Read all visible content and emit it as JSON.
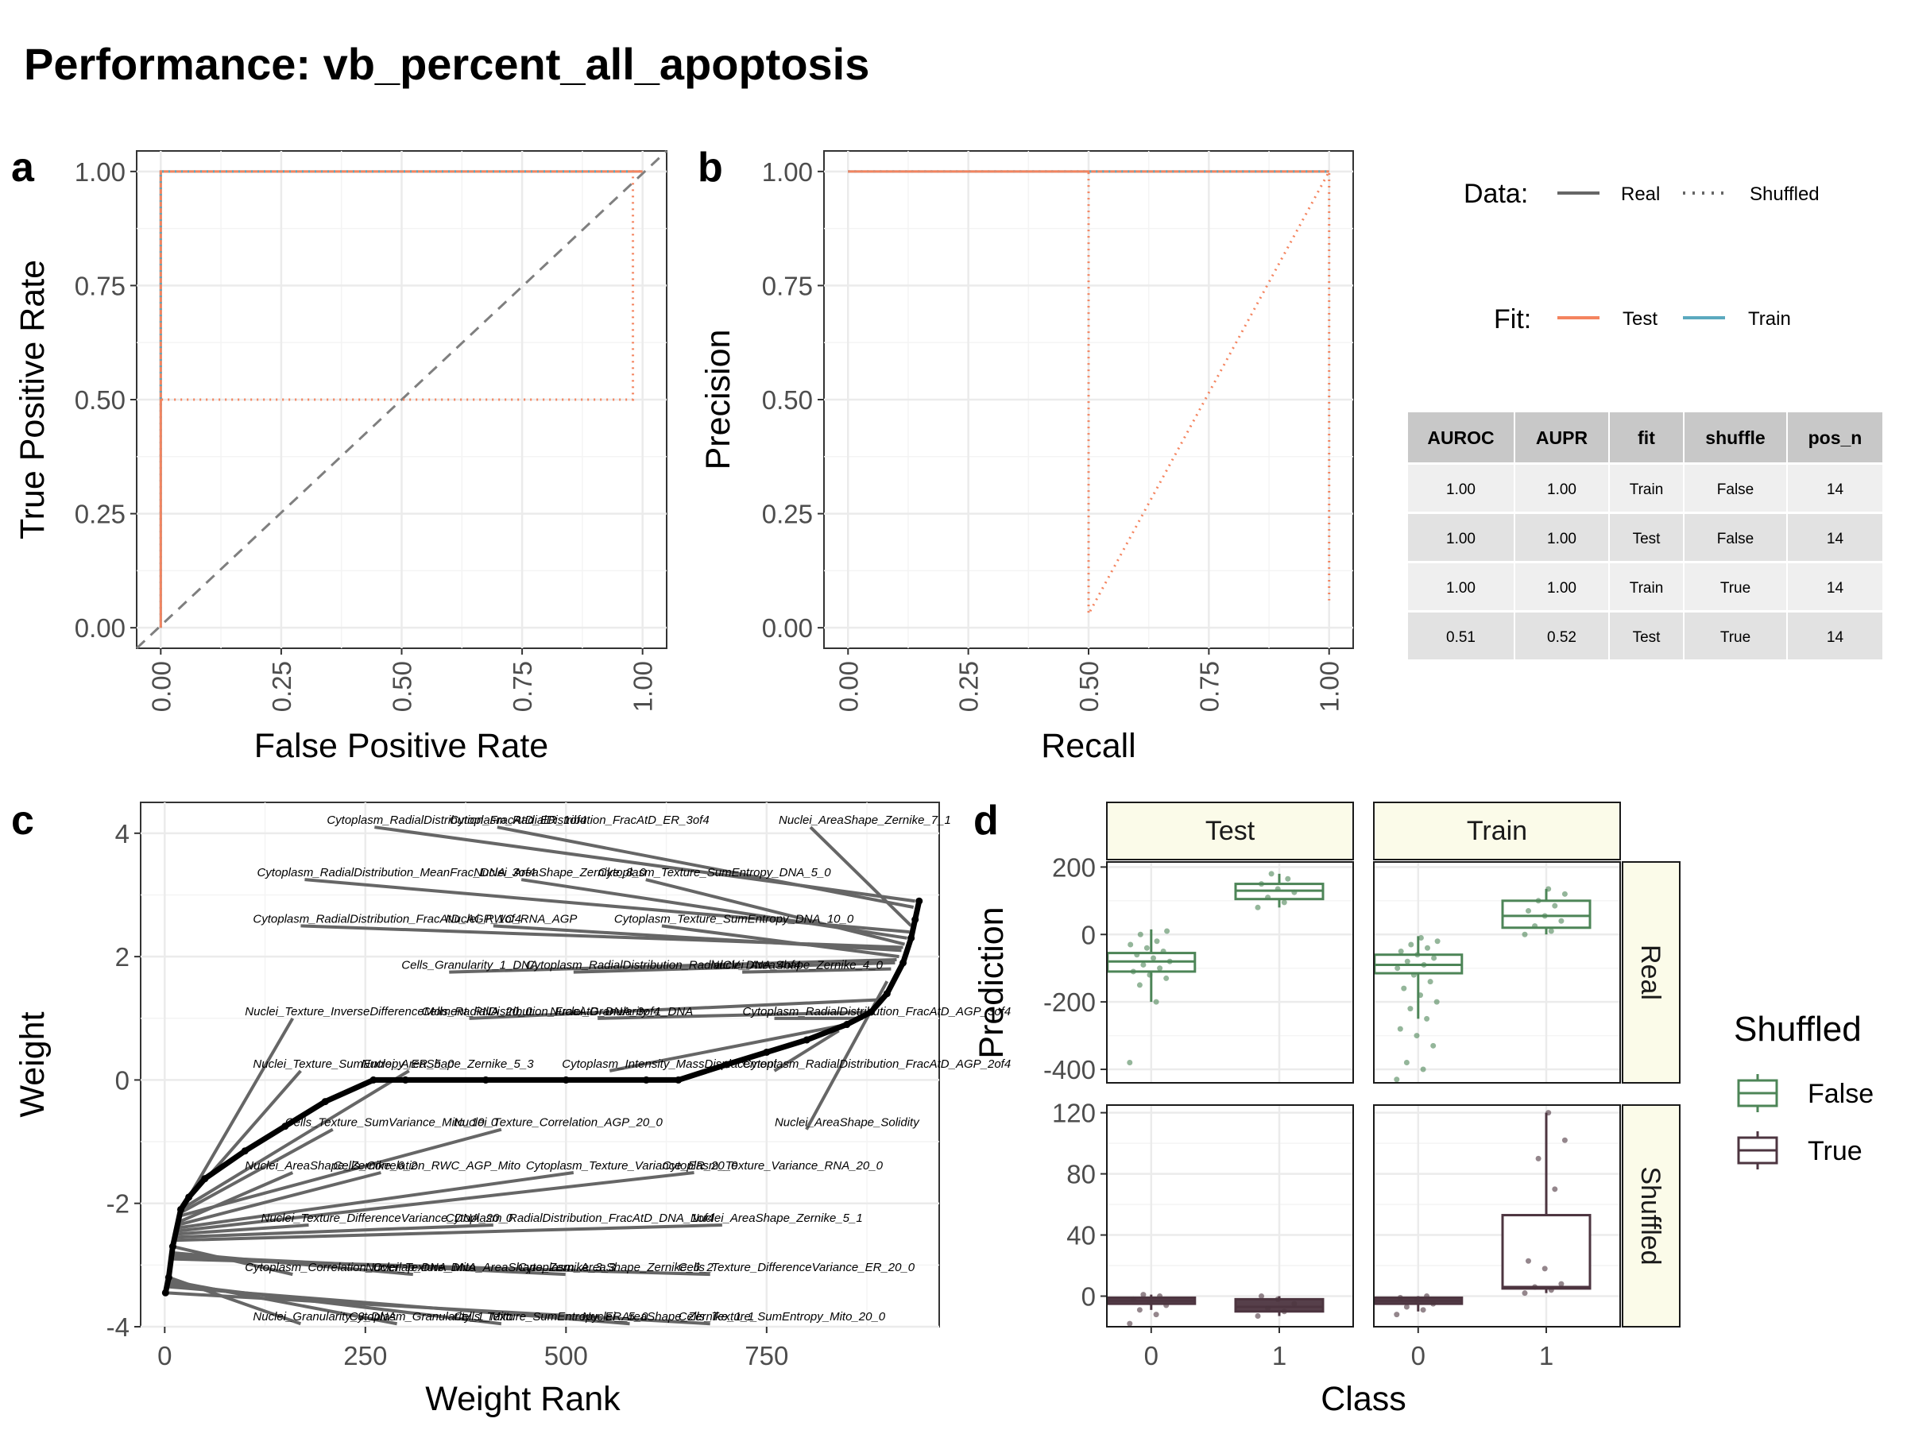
{
  "title": "Performance: vb_percent_all_apoptosis",
  "panels": {
    "a": "a",
    "b": "b",
    "c": "c",
    "d": "d"
  },
  "colors": {
    "test": "#f4845f",
    "train": "#5ba9bf",
    "false_box": "#4d8557",
    "true_box": "#4d3540",
    "diag": "#7f7f7f"
  },
  "legend": {
    "data_title": "Data:",
    "real": "Real",
    "shuffled": "Shuffled",
    "fit_title": "Fit:",
    "test": "Test",
    "train": "Train"
  },
  "metrics_table": {
    "columns": [
      "AUROC",
      "AUPR",
      "fit",
      "shuffle",
      "pos_n"
    ],
    "rows": [
      [
        "1.00",
        "1.00",
        "Train",
        "False",
        "14"
      ],
      [
        "1.00",
        "1.00",
        "Test",
        "False",
        "14"
      ],
      [
        "1.00",
        "1.00",
        "Train",
        "True",
        "14"
      ],
      [
        "0.51",
        "0.52",
        "Test",
        "True",
        "14"
      ]
    ]
  },
  "chart_data": [
    {
      "panel": "a",
      "type": "line",
      "xlabel": "False Positive Rate",
      "ylabel": "True Positive Rate",
      "xlim": [
        -0.05,
        1.05
      ],
      "ylim": [
        -0.045,
        1.045
      ],
      "xticks": [
        "0.00",
        "0.25",
        "0.50",
        "0.75",
        "1.00"
      ],
      "yticks": [
        "0.00",
        "0.25",
        "0.50",
        "0.75",
        "1.00"
      ],
      "reference_line": "diagonal",
      "series": [
        {
          "fit": "train",
          "data": "real",
          "x": [
            0,
            0,
            1
          ],
          "y": [
            0,
            1,
            1
          ]
        },
        {
          "fit": "test",
          "data": "real",
          "x": [
            0,
            0,
            1
          ],
          "y": [
            0,
            1,
            1
          ]
        },
        {
          "fit": "train",
          "data": "shuffled",
          "x": [
            0,
            0,
            1
          ],
          "y": [
            0,
            1,
            1
          ]
        },
        {
          "fit": "test",
          "data": "shuffled",
          "x": [
            0,
            0,
            0.98,
            0.98,
            1
          ],
          "y": [
            0,
            0.5,
            0.5,
            1,
            1
          ]
        }
      ]
    },
    {
      "panel": "b",
      "type": "line",
      "xlabel": "Recall",
      "ylabel": "Precision",
      "xlim": [
        -0.05,
        1.05
      ],
      "ylim": [
        -0.045,
        1.045
      ],
      "xticks": [
        "0.00",
        "0.25",
        "0.50",
        "0.75",
        "1.00"
      ],
      "yticks": [
        "0.00",
        "0.25",
        "0.50",
        "0.75",
        "1.00"
      ],
      "series": [
        {
          "fit": "train",
          "data": "real",
          "x": [
            0,
            1
          ],
          "y": [
            1,
            1
          ]
        },
        {
          "fit": "test",
          "data": "real",
          "x": [
            0,
            1
          ],
          "y": [
            1,
            1
          ]
        },
        {
          "fit": "train",
          "data": "shuffled",
          "x": [
            0,
            1
          ],
          "y": [
            1,
            1
          ]
        },
        {
          "fit": "test",
          "data": "shuffled",
          "x": [
            0,
            0.5,
            0.5,
            1,
            1
          ],
          "y": [
            1,
            1,
            0.03,
            1,
            0.06
          ]
        }
      ]
    },
    {
      "panel": "c",
      "type": "scatter",
      "xlabel": "Weight Rank",
      "ylabel": "Weight",
      "xlim": [
        -30,
        965
      ],
      "ylim": [
        -4,
        4.5
      ],
      "xticks": [
        0,
        250,
        500,
        750
      ],
      "yticks": [
        4,
        2,
        0,
        -2,
        -4
      ],
      "yticklabels": [
        "4",
        "2",
        "0",
        "-2",
        "-4"
      ],
      "curve": {
        "rank": [
          1,
          5,
          10,
          20,
          30,
          50,
          100,
          150,
          200,
          260,
          300,
          400,
          500,
          600,
          640,
          700,
          750,
          800,
          850,
          880,
          900,
          920,
          930,
          935,
          940
        ],
        "weight": [
          -3.45,
          -3.2,
          -2.7,
          -2.1,
          -1.9,
          -1.6,
          -1.15,
          -0.75,
          -0.35,
          0,
          0,
          0,
          0,
          0,
          0,
          0.25,
          0.45,
          0.65,
          0.9,
          1.1,
          1.4,
          1.9,
          2.3,
          2.6,
          2.9
        ]
      },
      "labels": [
        {
          "text": "Cytoplasm_RadialDistribution_FracAtD_ER_1of4",
          "rank": 935,
          "weight": 2.9,
          "tx": 202,
          "ty": 4.15
        },
        {
          "text": "Cytoplasm_RadialDistribution_FracAtD_ER_3of4",
          "rank": 933,
          "weight": 2.8,
          "tx": 355,
          "ty": 4.15
        },
        {
          "text": "Nuclei_AreaShape_Zernike_7_1",
          "rank": 930,
          "weight": 2.5,
          "tx": 765,
          "ty": 4.15
        },
        {
          "text": "Cytoplasm_RadialDistribution_MeanFrac_DNA_3of4",
          "rank": 928,
          "weight": 2.4,
          "tx": 115,
          "ty": 3.3
        },
        {
          "text": "Nuclei_AreaShape_Zernike_8_0",
          "rank": 925,
          "weight": 2.3,
          "tx": 385,
          "ty": 3.3
        },
        {
          "text": "Cytoplasm_Texture_SumEntropy_DNA_5_0",
          "rank": 922,
          "weight": 2.2,
          "tx": 540,
          "ty": 3.3
        },
        {
          "text": "Cytoplasm_RadialDistribution_FracAtD_AGP_1of4",
          "rank": 920,
          "weight": 2.15,
          "tx": 110,
          "ty": 2.55
        },
        {
          "text": "Nuclei_RWC_RNA_AGP",
          "rank": 918,
          "weight": 2.1,
          "tx": 350,
          "ty": 2.55
        },
        {
          "text": "Cytoplasm_Texture_SumEntropy_DNA_10_0",
          "rank": 915,
          "weight": 2.0,
          "tx": 560,
          "ty": 2.55
        },
        {
          "text": "Cells_Granularity_1_DNA",
          "rank": 912,
          "weight": 1.95,
          "tx": 295,
          "ty": 1.8
        },
        {
          "text": "Cytoplasm_RadialDistribution_RadialCV_DNA_4of4",
          "rank": 910,
          "weight": 1.9,
          "tx": 450,
          "ty": 1.8
        },
        {
          "text": "Nuclei_AreaShape_Zernike_4_0",
          "rank": 905,
          "weight": 1.8,
          "tx": 680,
          "ty": 1.8
        },
        {
          "text": "Nuclei_Texture_InverseDifferenceMoment_RNA_20_0",
          "rank": 30,
          "weight": -1.9,
          "tx": 100,
          "ty": 1.05
        },
        {
          "text": "Cells_RadialDistribution_FracAtD_DNA_3of4",
          "rank": 890,
          "weight": 1.3,
          "tx": 320,
          "ty": 1.05
        },
        {
          "text": "Nuclei_Granularity_1_DNA",
          "rank": 880,
          "weight": 1.1,
          "tx": 480,
          "ty": 1.05
        },
        {
          "text": "Cytoplasm_RadialDistribution_FracAtD_AGP_3of4",
          "rank": 870,
          "weight": 1.0,
          "tx": 720,
          "ty": 1.05
        },
        {
          "text": "Nuclei_Texture_SumEntropy_ER_5_0",
          "rank": 25,
          "weight": -2.0,
          "tx": 110,
          "ty": 0.2
        },
        {
          "text": "Nuclei_AreaShape_Zernike_5_3",
          "rank": 20,
          "weight": -2.1,
          "tx": 245,
          "ty": 0.2
        },
        {
          "text": "Cytoplasm_Intensity_MassDisplacement",
          "rank": 850,
          "weight": 0.9,
          "tx": 495,
          "ty": 0.2
        },
        {
          "text": "Cytoplasm_RadialDistribution_FracAtD_AGP_2of4",
          "rank": 840,
          "weight": 0.8,
          "tx": 720,
          "ty": 0.2
        },
        {
          "text": "Cells_Texture_SumVariance_Mito_10_0",
          "rank": 20,
          "weight": -2.15,
          "tx": 150,
          "ty": -0.75
        },
        {
          "text": "Nuclei_Texture_Correlation_AGP_20_0",
          "rank": 20,
          "weight": -2.2,
          "tx": 360,
          "ty": -0.75
        },
        {
          "text": "Nuclei_AreaShape_Solidity",
          "rank": 900,
          "weight": 1.6,
          "tx": 760,
          "ty": -0.75
        },
        {
          "text": "Nuclei_AreaShape_Zernike_6_2",
          "rank": 18,
          "weight": -2.3,
          "tx": 100,
          "ty": -1.45
        },
        {
          "text": "Cells_Correlation_RWC_AGP_Mito",
          "rank": 16,
          "weight": -2.35,
          "tx": 210,
          "ty": -1.45
        },
        {
          "text": "Cytoplasm_Texture_Variance_ER_20_0",
          "rank": 15,
          "weight": -2.4,
          "tx": 450,
          "ty": -1.45
        },
        {
          "text": "Cytoplasm_Texture_Variance_RNA_20_0",
          "rank": 15,
          "weight": -2.45,
          "tx": 620,
          "ty": -1.45
        },
        {
          "text": "Nuclei_Texture_DifferenceVariance_DNA_20_0",
          "rank": 13,
          "weight": -2.5,
          "tx": 120,
          "ty": -2.3
        },
        {
          "text": "Cytoplasm_RadialDistribution_FracAtD_DNA_1of4",
          "rank": 12,
          "weight": -2.55,
          "tx": 350,
          "ty": -2.3
        },
        {
          "text": "Nuclei_AreaShape_Zernike_5_1",
          "rank": 12,
          "weight": -2.6,
          "tx": 655,
          "ty": -2.3
        },
        {
          "text": "Cytoplasm_Correlation_Overlap_DNA_Mito",
          "rank": 10,
          "weight": -2.7,
          "tx": 100,
          "ty": -3.1
        },
        {
          "text": "Nuclei_Texture_DNA_AreaShape_Zernike_3_3",
          "rank": 9,
          "weight": -2.8,
          "tx": 250,
          "ty": -3.1
        },
        {
          "text": "Cytoplasm_AreaShape_Zernike_6_2",
          "rank": 9,
          "weight": -2.85,
          "tx": 440,
          "ty": -3.1
        },
        {
          "text": "Cells_Texture_DifferenceVariance_ER_20_0",
          "rank": 8,
          "weight": -2.9,
          "tx": 640,
          "ty": -3.1
        },
        {
          "text": "Nuclei_Granularity_3_DNA",
          "rank": 5,
          "weight": -3.2,
          "tx": 110,
          "ty": -3.9
        },
        {
          "text": "Cytoplasm_Granularity_1_Mito",
          "rank": 4,
          "weight": -3.25,
          "tx": 230,
          "ty": -3.9
        },
        {
          "text": "Cells_Texture_SumEntropy_ER_5_0",
          "rank": 3,
          "weight": -3.3,
          "tx": 360,
          "ty": -3.9
        },
        {
          "text": "Nuclei_AreaShape_Zernike_1_1",
          "rank": 2,
          "weight": -3.35,
          "tx": 520,
          "ty": -3.9
        },
        {
          "text": "Cells_Texture_SumEntropy_Mito_20_0",
          "rank": 1,
          "weight": -3.45,
          "tx": 640,
          "ty": -3.9
        }
      ]
    },
    {
      "panel": "d",
      "type": "box",
      "xlabel": "Class",
      "ylabel": "Prediction",
      "categories": [
        "0",
        "1"
      ],
      "columns": [
        "Test",
        "Train"
      ],
      "rows": [
        "Real",
        "Shuffled"
      ],
      "legend_title": "Shuffled",
      "legend": [
        "False",
        "True"
      ],
      "facets": [
        {
          "row": "Real",
          "col": "Test",
          "ylim": [
            -440,
            215
          ],
          "yticks": [
            200,
            0,
            -200,
            -400
          ],
          "boxes": [
            {
              "cat": "0",
              "q1": -110,
              "median": -80,
              "q3": -55,
              "low": -200,
              "high": 15,
              "points": [
                -380,
                -200,
                -150,
                -130,
                -120,
                -110,
                -100,
                -90,
                -80,
                -70,
                -60,
                -50,
                -40,
                -30,
                -20,
                0,
                10
              ]
            },
            {
              "cat": "1",
              "q1": 105,
              "median": 130,
              "q3": 150,
              "low": 80,
              "high": 180,
              "points": [
                80,
                95,
                110,
                125,
                135,
                150,
                165,
                180
              ]
            }
          ]
        },
        {
          "row": "Real",
          "col": "Train",
          "ylim": [
            -440,
            215
          ],
          "yticks": [
            200,
            0,
            -200,
            -400
          ],
          "boxes": [
            {
              "cat": "0",
              "q1": -115,
              "median": -90,
              "q3": -60,
              "low": -250,
              "high": -5,
              "points": [
                -430,
                -400,
                -380,
                -330,
                -300,
                -280,
                -250,
                -220,
                -200,
                -180,
                -160,
                -140,
                -120,
                -100,
                -90,
                -80,
                -70,
                -60,
                -50,
                -40,
                -30,
                -20,
                -10
              ]
            },
            {
              "cat": "1",
              "q1": 20,
              "median": 55,
              "q3": 100,
              "low": 0,
              "high": 135,
              "points": [
                0,
                10,
                25,
                40,
                55,
                70,
                85,
                100,
                120,
                135
              ]
            }
          ]
        },
        {
          "row": "Shuffled",
          "col": "Test",
          "ylim": [
            -20,
            125
          ],
          "yticks": [
            120,
            80,
            40,
            0
          ],
          "boxes": [
            {
              "cat": "0",
              "q1": -5,
              "median": -3,
              "q3": -1,
              "low": -9,
              "high": 1,
              "points": [
                -18,
                -12,
                -9,
                -6,
                -4,
                -2,
                0,
                1
              ]
            },
            {
              "cat": "1",
              "q1": -10,
              "median": -7,
              "q3": -2,
              "low": -13,
              "high": 0,
              "points": [
                -13,
                -10,
                -8,
                -5,
                -2,
                0
              ]
            }
          ]
        },
        {
          "row": "Shuffled",
          "col": "Train",
          "ylim": [
            -20,
            125
          ],
          "yticks": [
            120,
            80,
            40,
            0
          ],
          "boxes": [
            {
              "cat": "0",
              "q1": -5,
              "median": -3,
              "q3": -1,
              "low": -10,
              "high": 0,
              "points": [
                -12,
                -9,
                -7,
                -5,
                -3,
                -1,
                0
              ]
            },
            {
              "cat": "1",
              "q1": 5,
              "median": 6,
              "q3": 53,
              "low": 2,
              "high": 120,
              "points": [
                2,
                4,
                6,
                8,
                18,
                23,
                70,
                90,
                102,
                120
              ]
            }
          ]
        }
      ]
    }
  ]
}
